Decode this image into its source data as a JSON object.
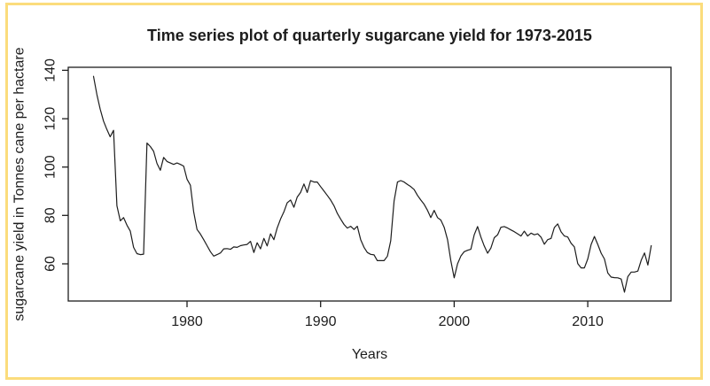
{
  "chart_data": {
    "type": "line",
    "title": "Time series plot of quarterly sugarcane yield for 1973-2015",
    "xlabel": "Years",
    "ylabel": "sugarcane yield in Tonnes cane per hactare",
    "series": [
      {
        "name": "quarterly sugarcane yield (tonnes cane per hectare)",
        "start_year": 1973,
        "frequency": 4,
        "values": [
          137.5,
          130,
          124,
          119,
          115.5,
          112.5,
          115.2,
          84,
          77.8,
          79.1,
          76,
          73.5,
          66.8,
          64.2,
          63.8,
          64,
          109.9,
          108.5,
          106.5,
          101.5,
          98.7,
          104,
          102.3,
          101.7,
          101.1,
          101.7,
          101.1,
          100.4,
          95,
          92.5,
          81.5,
          74.2,
          72.3,
          70,
          67.5,
          65,
          63.2,
          63.8,
          64.5,
          66.2,
          66.3,
          66,
          67,
          66.8,
          67.5,
          67.8,
          68,
          69.3,
          64.7,
          68.7,
          66.2,
          70.5,
          67.4,
          72.4,
          70,
          74.8,
          78.5,
          81.5,
          85.2,
          86.4,
          83.4,
          87.6,
          89.5,
          93,
          89.5,
          94.4,
          93.8,
          93.8,
          91.9,
          90.1,
          88.3,
          86.4,
          84,
          80.9,
          78.5,
          76.3,
          74.8,
          75.5,
          74.2,
          75.5,
          70,
          66.8,
          64.7,
          63.9,
          63.7,
          61.3,
          61.3,
          61.3,
          63.2,
          69.5,
          86,
          93.8,
          94.4,
          93.8,
          92.8,
          91.9,
          90.7,
          88.3,
          86.4,
          84.6,
          82.1,
          79.1,
          82.1,
          79.1,
          78.1,
          75.1,
          70,
          61.3,
          54.2,
          60,
          63.2,
          65,
          65.6,
          66,
          72,
          75.4,
          71.1,
          67.4,
          64.4,
          66.5,
          70.8,
          72,
          75.1,
          75.4,
          74.8,
          74,
          73.3,
          72.4,
          71.5,
          73.5,
          71.5,
          72.7,
          72,
          72.4,
          71,
          68.1,
          70,
          70.5,
          75,
          76.5,
          73.2,
          71.5,
          71.1,
          68.5,
          67,
          60.1,
          58.3,
          58.3,
          62,
          68,
          71.3,
          68,
          64.4,
          62,
          56.2,
          54.5,
          54.3,
          54.2,
          53.7,
          48.3,
          54.7,
          56.6,
          56.6,
          57,
          61.5,
          64.5,
          59.5,
          67.5
        ]
      }
    ],
    "x_axis": {
      "ticks": [
        1980,
        1990,
        2000,
        2010
      ],
      "range": [
        1971.1,
        2016.3
      ]
    },
    "y_axis": {
      "ticks": [
        60,
        80,
        100,
        120,
        140
      ],
      "range": [
        44,
        141.5
      ]
    },
    "grid": false,
    "legend": false,
    "line_color": "#1d1d1d",
    "text_color": "#1d1d1d",
    "frame_color": "#fbdc7c"
  }
}
